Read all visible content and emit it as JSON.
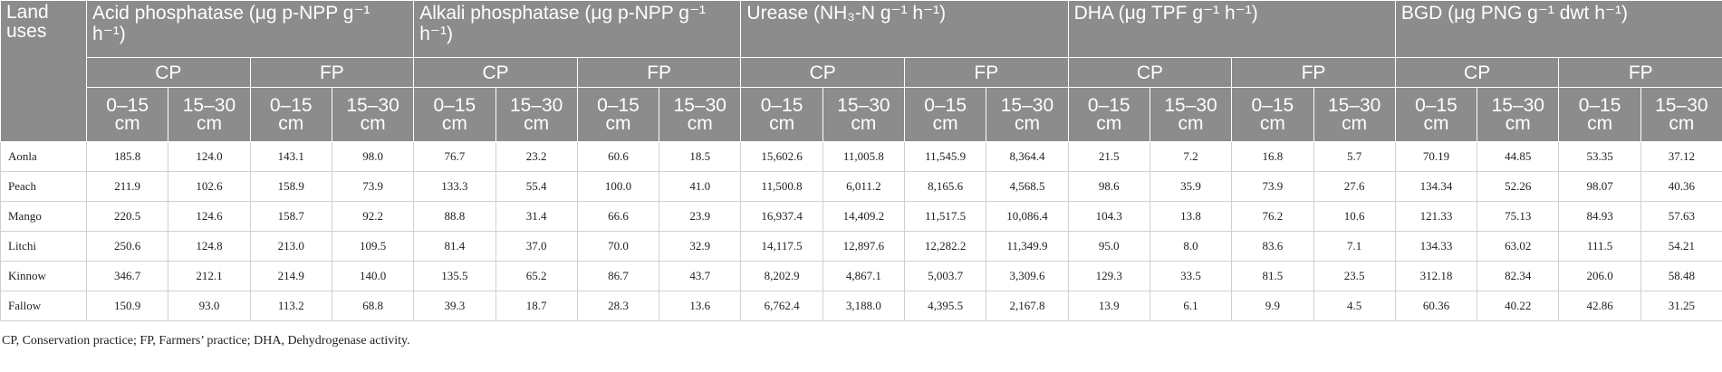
{
  "table": {
    "corner": "Land uses",
    "groups": [
      {
        "title": "Acid phosphatase (μg p-NPP g⁻¹ h⁻¹)",
        "subgroups": [
          {
            "label": "CP",
            "depths": [
              "0–15 cm",
              "15–30 cm"
            ]
          },
          {
            "label": "FP",
            "depths": [
              "0–15 cm",
              "15–30 cm"
            ]
          }
        ]
      },
      {
        "title": "Alkali phosphatase (μg p-NPP g⁻¹ h⁻¹)",
        "subgroups": [
          {
            "label": "CP",
            "depths": [
              "0–15 cm",
              "15–30 cm"
            ]
          },
          {
            "label": "FP",
            "depths": [
              "0–15 cm",
              "15–30 cm"
            ]
          }
        ]
      },
      {
        "title": "Urease (NH₃-N g⁻¹ h⁻¹)",
        "subgroups": [
          {
            "label": "CP",
            "depths": [
              "0–15 cm",
              "15–30 cm"
            ]
          },
          {
            "label": "FP",
            "depths": [
              "0–15 cm",
              "15–30 cm"
            ]
          }
        ]
      },
      {
        "title": "DHA (μg TPF g⁻¹ h⁻¹)",
        "subgroups": [
          {
            "label": "CP",
            "depths": [
              "0–15 cm",
              "15–30 cm"
            ]
          },
          {
            "label": "FP",
            "depths": [
              "0–15 cm",
              "15–30 cm"
            ]
          }
        ]
      },
      {
        "title": "BGD (μg PNG g⁻¹ dwt h⁻¹)",
        "subgroups": [
          {
            "label": "CP",
            "depths": [
              "0–15 cm",
              "15–30 cm"
            ]
          },
          {
            "label": "FP",
            "depths": [
              "0–15 cm",
              "15–30 cm"
            ]
          }
        ]
      }
    ],
    "rows": [
      [
        "Aonla",
        "185.8",
        "124.0",
        "143.1",
        "98.0",
        "76.7",
        "23.2",
        "60.6",
        "18.5",
        "15,602.6",
        "11,005.8",
        "11,545.9",
        "8,364.4",
        "21.5",
        "7.2",
        "16.8",
        "5.7",
        "70.19",
        "44.85",
        "53.35",
        "37.12"
      ],
      [
        "Peach",
        "211.9",
        "102.6",
        "158.9",
        "73.9",
        "133.3",
        "55.4",
        "100.0",
        "41.0",
        "11,500.8",
        "6,011.2",
        "8,165.6",
        "4,568.5",
        "98.6",
        "35.9",
        "73.9",
        "27.6",
        "134.34",
        "52.26",
        "98.07",
        "40.36"
      ],
      [
        "Mango",
        "220.5",
        "124.6",
        "158.7",
        "92.2",
        "88.8",
        "31.4",
        "66.6",
        "23.9",
        "16,937.4",
        "14,409.2",
        "11,517.5",
        "10,086.4",
        "104.3",
        "13.8",
        "76.2",
        "10.6",
        "121.33",
        "75.13",
        "84.93",
        "57.63"
      ],
      [
        "Litchi",
        "250.6",
        "124.8",
        "213.0",
        "109.5",
        "81.4",
        "37.0",
        "70.0",
        "32.9",
        "14,117.5",
        "12,897.6",
        "12,282.2",
        "11,349.9",
        "95.0",
        "8.0",
        "83.6",
        "7.1",
        "134.33",
        "63.02",
        "111.5",
        "54.21"
      ],
      [
        "Kinnow",
        "346.7",
        "212.1",
        "214.9",
        "140.0",
        "135.5",
        "65.2",
        "86.7",
        "43.7",
        "8,202.9",
        "4,867.1",
        "5,003.7",
        "3,309.6",
        "129.3",
        "33.5",
        "81.5",
        "23.5",
        "312.18",
        "82.34",
        "206.0",
        "58.48"
      ],
      [
        "Fallow",
        "150.9",
        "93.0",
        "113.2",
        "68.8",
        "39.3",
        "18.7",
        "28.3",
        "13.6",
        "6,762.4",
        "3,188.0",
        "4,395.5",
        "2,167.8",
        "13.9",
        "6.1",
        "9.9",
        "4.5",
        "60.36",
        "40.22",
        "42.86",
        "31.25"
      ]
    ],
    "footnote": "CP, Conservation practice; FP, Farmers’ practice; DHA, Dehydrogenase activity."
  }
}
